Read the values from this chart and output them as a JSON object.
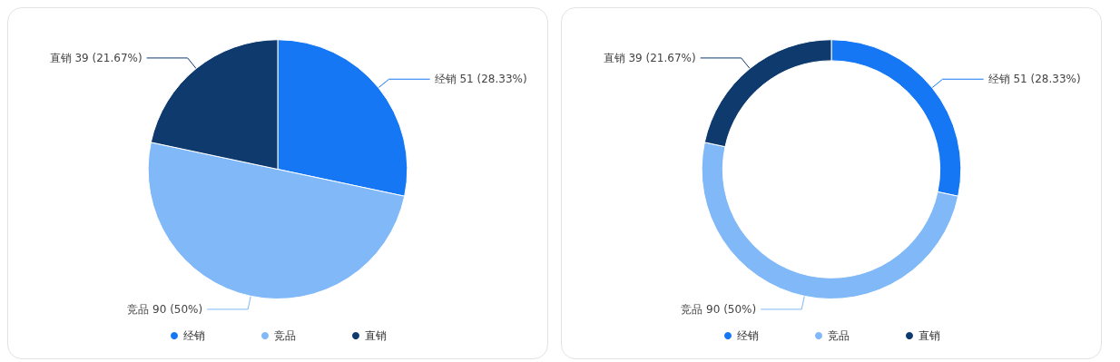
{
  "chart_data": [
    {
      "type": "pie",
      "categories": [
        "经销",
        "竞品",
        "直销"
      ],
      "values": [
        51,
        90,
        39
      ],
      "colors": [
        "#1677f5",
        "#80b8f8",
        "#0e3a6e"
      ],
      "value_labels": [
        "经销 51 (28.33%)",
        "竞品 90 (50%)",
        "直销 39 (21.67%)"
      ],
      "legend": "bottom"
    },
    {
      "type": "donut",
      "categories": [
        "经销",
        "竞品",
        "直销"
      ],
      "values": [
        51,
        90,
        39
      ],
      "colors": [
        "#1677f5",
        "#80b8f8",
        "#0e3a6e"
      ],
      "value_labels": [
        "经销 51 (28.33%)",
        "竞品 90 (50%)",
        "直销 39 (21.67%)"
      ],
      "legend": "bottom"
    }
  ]
}
